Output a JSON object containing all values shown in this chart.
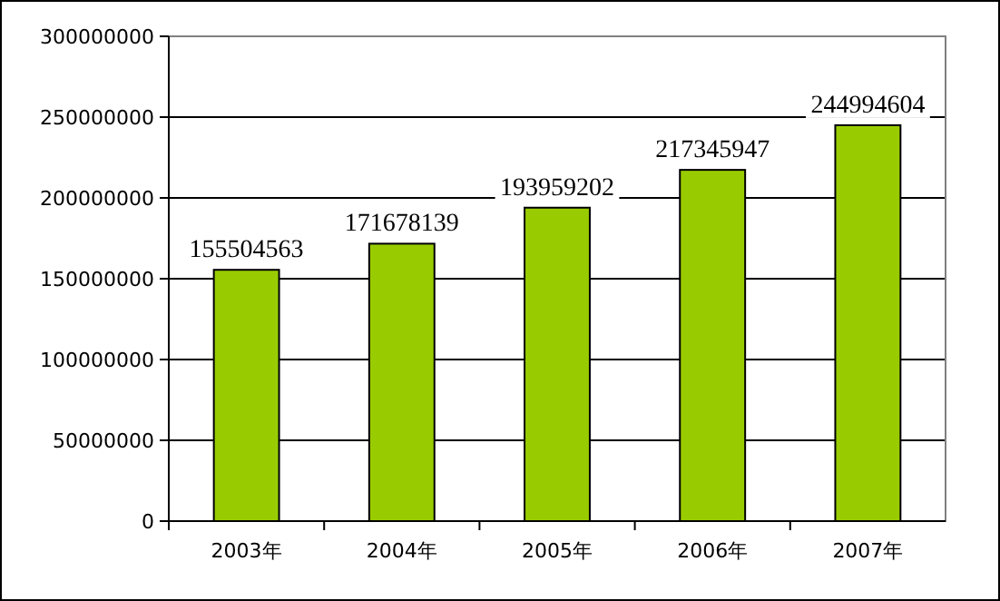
{
  "chart_data": {
    "type": "bar",
    "categories": [
      "2003年",
      "2004年",
      "2005年",
      "2006年",
      "2007年"
    ],
    "values": [
      155504563,
      171678139,
      193959202,
      217345947,
      244994604
    ],
    "color": "#99cc00",
    "ylim": [
      0,
      300000000
    ],
    "yticks": [
      0,
      50000000,
      100000000,
      150000000,
      200000000,
      250000000,
      300000000
    ],
    "grid": "y",
    "data_labels": true
  }
}
